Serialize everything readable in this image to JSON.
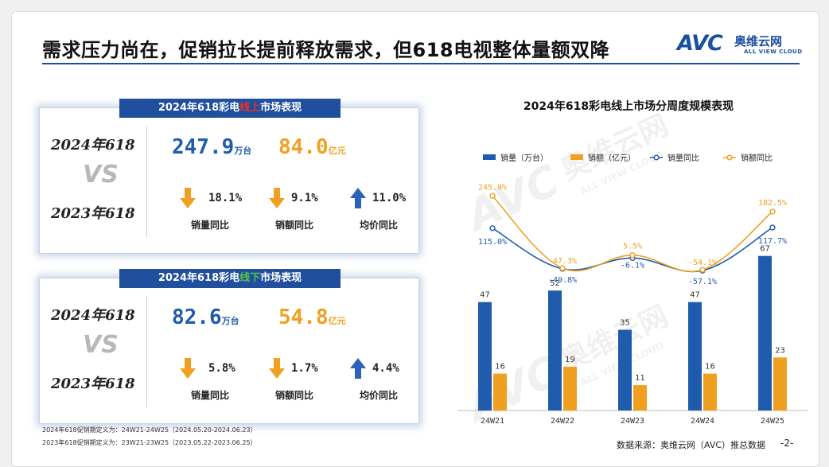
{
  "title": "需求压力尚在，促销拉长提前释放需求，但618电视整体量额双降",
  "logo": {
    "avc": "AVC",
    "cn": "奥维云网",
    "en": "ALL VIEW CLOUD"
  },
  "watermark": {
    "avc": "AVC",
    "cn": "奥维云网",
    "en": "ALL VIEW CLOUD"
  },
  "online": {
    "header_pre": "2024年618彩电",
    "header_hl": "线上",
    "header_post": "市场表现",
    "year_a": "2024年618",
    "vs": "VS",
    "year_b": "2023年618",
    "volume": "247.9",
    "volume_unit": "万台",
    "amount": "84.0",
    "amount_unit": "亿元",
    "stat1_value": "18.1%",
    "stat1_label": "销量同比",
    "stat2_value": "9.1%",
    "stat2_label": "销额同比",
    "stat3_value": "11.0%",
    "stat3_label": "均价同比"
  },
  "offline": {
    "header_pre": "2024年618彩电",
    "header_hl": "线下",
    "header_post": "市场表现",
    "year_a": "2024年618",
    "vs": "VS",
    "year_b": "2023年618",
    "volume": "82.6",
    "volume_unit": "万台",
    "amount": "54.8",
    "amount_unit": "亿元",
    "stat1_value": "5.8%",
    "stat1_label": "销量同比",
    "stat2_value": "1.7%",
    "stat2_label": "销额同比",
    "stat3_value": "4.4%",
    "stat3_label": "均价同比"
  },
  "notes": {
    "line1": "2024年618促销期定义为：24W21-24W25（2024.05.20-2024.06.23）",
    "line2": "2023年618促销期定义为：23W21-23W25（2023.05.22-2023.06.25）"
  },
  "footer": {
    "source": "数据来源：奥维云网（AVC）推总数据",
    "page": "-2-"
  },
  "colors": {
    "blue": "#1f5cae",
    "orange": "#f0a020",
    "header": "#1f4f9d",
    "up_arrow": "#2c62b8",
    "down_arrow": "#f0a020"
  },
  "icons": {
    "down": "down-arrow-icon",
    "up": "up-arrow-icon"
  },
  "chart_data": {
    "type": "bar",
    "title": "2024年618彩电线上市场分周度规模表现",
    "categories": [
      "24W21",
      "24W22",
      "24W23",
      "24W24",
      "24W25"
    ],
    "series": [
      {
        "name": "销量（万台）",
        "type": "bar",
        "values": [
          47,
          52,
          35,
          47,
          67
        ],
        "labels": [
          "47",
          "52",
          "35",
          "47",
          "67"
        ]
      },
      {
        "name": "销额（亿元）",
        "type": "bar",
        "values": [
          16,
          19,
          11,
          16,
          23
        ],
        "labels": [
          "16",
          "19",
          "11",
          "16",
          "23"
        ]
      },
      {
        "name": "销量同比",
        "type": "line",
        "values": [
          115.0,
          -49.8,
          -6.1,
          -57.1,
          117.7
        ],
        "labels": [
          "115.0%",
          "-49.8%",
          "-6.1%",
          "-57.1%",
          "117.7%"
        ]
      },
      {
        "name": "销额同比",
        "type": "line",
        "values": [
          245.9,
          -47.3,
          5.5,
          -54.1,
          182.5
        ],
        "labels": [
          "245.9%",
          "-47.3%",
          "5.5%",
          "-54.1%",
          "182.5%"
        ]
      }
    ],
    "legend_position": "top",
    "grid": false
  }
}
